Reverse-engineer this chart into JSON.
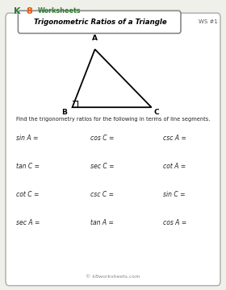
{
  "title": "Trigonometric Ratios of a Triangle",
  "ws_label": "WS #1",
  "instruction": "Find the trigonometry ratios for the following in terms of line segments.",
  "footer": "© k8worksheets.com",
  "triangle": {
    "A": [
      0.42,
      0.83
    ],
    "B": [
      0.32,
      0.63
    ],
    "C": [
      0.67,
      0.63
    ]
  },
  "vertex_labels": {
    "A": [
      0.42,
      0.855
    ],
    "B": [
      0.295,
      0.625
    ],
    "C": [
      0.68,
      0.625
    ]
  },
  "trig_items": [
    [
      "sin A =",
      "cos C =",
      "csc A ="
    ],
    [
      "tan C =",
      "sec C =",
      "cot A ="
    ],
    [
      "cot C =",
      "csc C =",
      "sin C ="
    ],
    [
      "sec A =",
      "tan A =",
      "cos A ="
    ]
  ],
  "bg_color": "#f0f0eb",
  "card_bg": "#ffffff",
  "title_bg": "#ffffff",
  "title_color": "#000000",
  "logo_k_color": "#2e7d32",
  "logo_8_color": "#e65100",
  "text_color": "#222222",
  "border_color": "#aaaaaa",
  "title_border_color": "#888888"
}
